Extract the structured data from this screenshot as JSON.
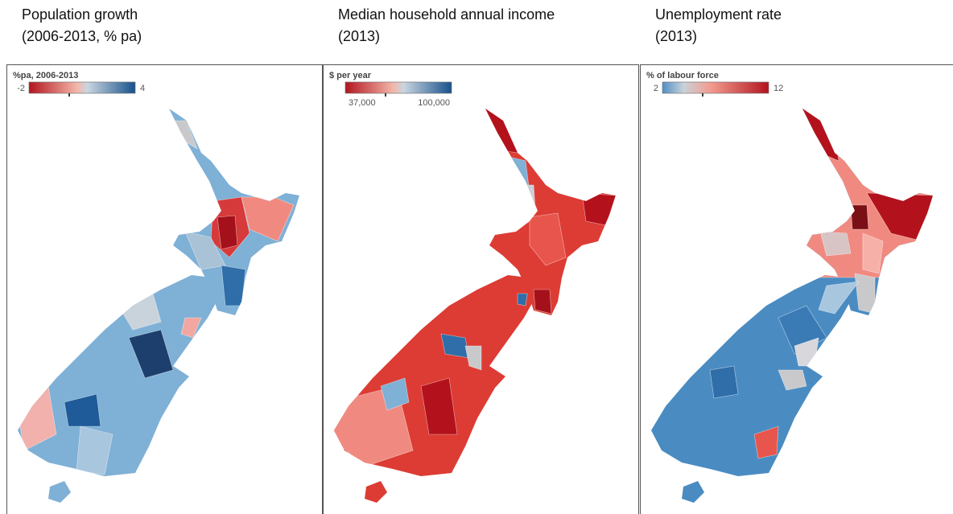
{
  "panels": [
    {
      "title": [
        "Population growth",
        "(2006-2013, % pa)"
      ],
      "legend": {
        "title": "%pa, 2006-2013",
        "min": "-2",
        "max": "4"
      }
    },
    {
      "title": [
        "Median household annual income",
        "(2013)"
      ],
      "legend": {
        "title": "$ per year",
        "min": "37,000",
        "max": "100,000"
      }
    },
    {
      "title": [
        "Unemployment rate",
        "(2013)"
      ],
      "legend": {
        "title": "% of labour force",
        "min": "2",
        "max": "12"
      }
    }
  ]
}
